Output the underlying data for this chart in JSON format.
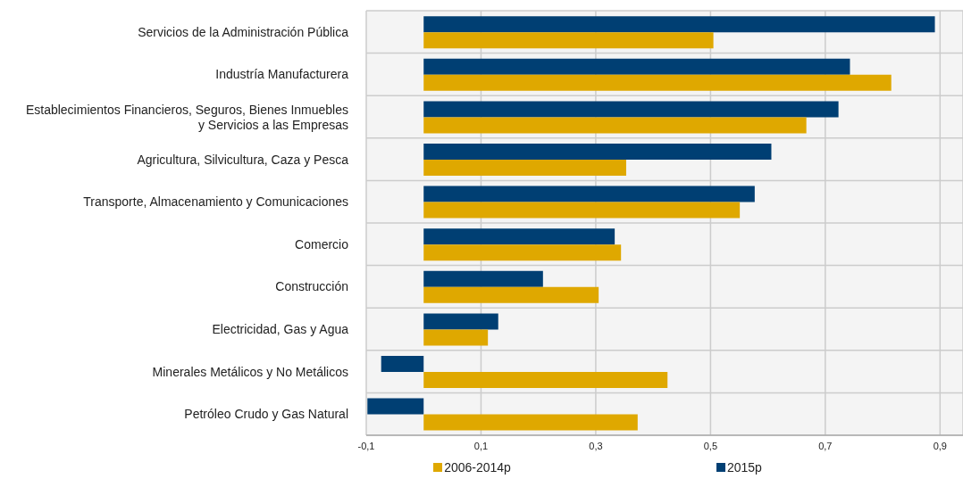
{
  "chart_data": {
    "type": "bar",
    "orientation": "horizontal",
    "categories": [
      "Servicios de la Administración Pública",
      "Industría Manufacturera",
      "Establecimientos Financieros, Seguros, Bienes Inmuebles\ny Servicios a las Empresas",
      "Agricultura, Silvicultura, Caza y Pesca",
      "Transporte, Almacenamiento y Comunicaciones",
      "Comercio",
      "Construcción",
      "Electricidad, Gas y Agua",
      "Minerales Metálicos y No Metálicos",
      "Petróleo Crudo y Gas Natural"
    ],
    "series": [
      {
        "name": "2015p",
        "color": "#003f73",
        "values": [
          0.891,
          0.743,
          0.723,
          0.606,
          0.577,
          0.333,
          0.208,
          0.13,
          -0.074,
          -0.098
        ]
      },
      {
        "name": "2006-2014p",
        "color": "#dfa800",
        "values": [
          0.505,
          0.815,
          0.667,
          0.353,
          0.551,
          0.344,
          0.305,
          0.112,
          0.425,
          0.373
        ]
      }
    ],
    "xlim": [
      -0.1,
      0.94
    ],
    "xticks": [
      {
        "value": -0.1,
        "label": "-0,1"
      },
      {
        "value": 0.1,
        "label": "0,1"
      },
      {
        "value": 0.3,
        "label": "0,3"
      },
      {
        "value": 0.5,
        "label": "0,5"
      },
      {
        "value": 0.7,
        "label": "0,7"
      },
      {
        "value": 0.9,
        "label": "0,9"
      }
    ],
    "grid": true,
    "legend": "bottom"
  }
}
